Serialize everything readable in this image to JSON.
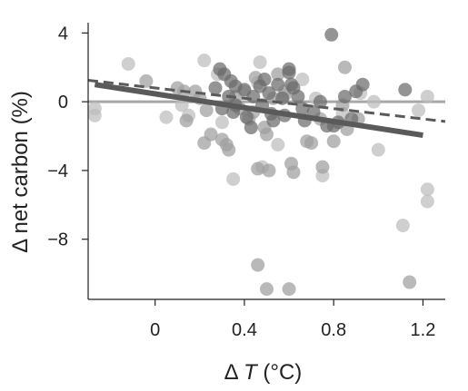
{
  "chart_data": {
    "type": "scatter",
    "xlabel": {
      "prefix": "Δ ",
      "var": "T",
      "unit": " (°C)"
    },
    "ylabel": "Δ net carbon (%)",
    "xlim": [
      -0.3,
      1.3
    ],
    "ylim": [
      -11.5,
      4.6
    ],
    "x_ticks": [
      0,
      0.4,
      0.8,
      1.2
    ],
    "x_tick_labels": [
      "0",
      "0.4",
      "0.8",
      "1.2"
    ],
    "y_ticks": [
      4,
      0,
      -4,
      -8
    ],
    "y_tick_labels": [
      "4",
      "0",
      "−4",
      "−8"
    ],
    "grid": false,
    "zero_line": {
      "y": 0,
      "color": "#a8a8a8"
    },
    "series": [
      {
        "color": "#bdbdbd",
        "points": [
          [
            -0.27,
            -0.4
          ],
          [
            -0.27,
            -0.8
          ],
          [
            0.05,
            -0.9
          ],
          [
            0.15,
            -0.8
          ],
          [
            0.3,
            -1.2
          ],
          [
            0.47,
            2.3
          ],
          [
            0.46,
            1.1
          ],
          [
            0.55,
            -2.5
          ],
          [
            0.75,
            -4.3
          ],
          [
            0.92,
            0.5
          ],
          [
            0.98,
            0.0
          ],
          [
            1.0,
            -2.8
          ],
          [
            1.18,
            -0.5
          ],
          [
            1.22,
            0.3
          ],
          [
            0.84,
            -0.7
          ],
          [
            0.66,
            1.3
          ],
          [
            0.58,
            0.6
          ],
          [
            0.22,
            2.4
          ],
          [
            -0.12,
            2.2
          ],
          [
            0.35,
            -4.5
          ],
          [
            0.72,
            0.2
          ],
          [
            1.22,
            -5.1
          ],
          [
            1.22,
            -5.8
          ],
          [
            1.11,
            -7.2
          ],
          [
            0.48,
            -3.8
          ],
          [
            0.28,
            1.6
          ],
          [
            0.12,
            -0.2
          ],
          [
            0.4,
            0.6
          ]
        ]
      },
      {
        "color": "#9e9e9e",
        "points": [
          [
            -0.04,
            1.2
          ],
          [
            0.1,
            0.8
          ],
          [
            0.13,
            0.6
          ],
          [
            0.2,
            0.2
          ],
          [
            0.23,
            -0.5
          ],
          [
            0.25,
            -1.9
          ],
          [
            0.3,
            -2.2
          ],
          [
            0.32,
            -2.5
          ],
          [
            0.33,
            -2.8
          ],
          [
            0.38,
            -0.4
          ],
          [
            0.42,
            -1.0
          ],
          [
            0.44,
            -0.6
          ],
          [
            0.46,
            -3.9
          ],
          [
            0.49,
            -1.5
          ],
          [
            0.5,
            -1.9
          ],
          [
            0.51,
            -4.0
          ],
          [
            0.53,
            0.2
          ],
          [
            0.58,
            0.4
          ],
          [
            0.61,
            -3.6
          ],
          [
            0.62,
            -4.1
          ],
          [
            0.68,
            -2.3
          ],
          [
            0.7,
            -2.4
          ],
          [
            0.75,
            -3.8
          ],
          [
            0.8,
            -2.3
          ],
          [
            0.84,
            -0.2
          ],
          [
            0.86,
            -1.6
          ],
          [
            0.91,
            -1.0
          ],
          [
            0.85,
            2.0
          ],
          [
            0.46,
            -9.5
          ],
          [
            0.5,
            -10.9
          ],
          [
            0.6,
            -10.9
          ],
          [
            1.14,
            -10.5
          ],
          [
            0.18,
            0.6
          ],
          [
            0.36,
            0.3
          ],
          [
            0.55,
            1.6
          ],
          [
            0.45,
            1.4
          ],
          [
            0.22,
            -2.4
          ],
          [
            0.14,
            -1.1
          ],
          [
            0.74,
            -1.0
          ]
        ]
      },
      {
        "color": "#6b6b6b",
        "points": [
          [
            0.29,
            1.9
          ],
          [
            0.31,
            1.6
          ],
          [
            0.34,
            1.2
          ],
          [
            0.36,
            0.9
          ],
          [
            0.33,
            0.3
          ],
          [
            0.36,
            -0.2
          ],
          [
            0.4,
            0.7
          ],
          [
            0.41,
            -0.9
          ],
          [
            0.43,
            -1.5
          ],
          [
            0.48,
            -0.2
          ],
          [
            0.49,
            1.3
          ],
          [
            0.51,
            0.5
          ],
          [
            0.52,
            -0.7
          ],
          [
            0.55,
            1.0
          ],
          [
            0.57,
            0.2
          ],
          [
            0.6,
            1.7
          ],
          [
            0.61,
            1.0
          ],
          [
            0.62,
            0.8
          ],
          [
            0.64,
            0.3
          ],
          [
            0.66,
            -0.4
          ],
          [
            0.71,
            -0.6
          ],
          [
            0.74,
            0.0
          ],
          [
            0.79,
            3.9
          ],
          [
            0.8,
            -1.4
          ],
          [
            0.82,
            -1.2
          ],
          [
            0.85,
            0.3
          ],
          [
            0.88,
            -1.0
          ],
          [
            0.9,
            0.6
          ],
          [
            0.93,
            1.0
          ],
          [
            1.12,
            0.7
          ],
          [
            0.3,
            -0.4
          ],
          [
            0.44,
            0.3
          ],
          [
            0.58,
            -0.8
          ],
          [
            0.67,
            -1.1
          ],
          [
            0.77,
            -1.4
          ],
          [
            0.27,
            0.8
          ],
          [
            0.35,
            -0.6
          ],
          [
            0.47,
            0.9
          ],
          [
            0.6,
            1.9
          ],
          [
            0.53,
            -1.1
          ]
        ]
      }
    ],
    "trend_lines": [
      {
        "style": "solid",
        "color": "#5a5a5a",
        "width": 6,
        "x": [
          -0.27,
          1.2
        ],
        "y": [
          1.0,
          -1.95
        ]
      },
      {
        "style": "dashed",
        "color": "#5a5a5a",
        "width": 3,
        "x": [
          -0.3,
          1.3
        ],
        "y": [
          1.25,
          -1.15
        ]
      }
    ]
  }
}
